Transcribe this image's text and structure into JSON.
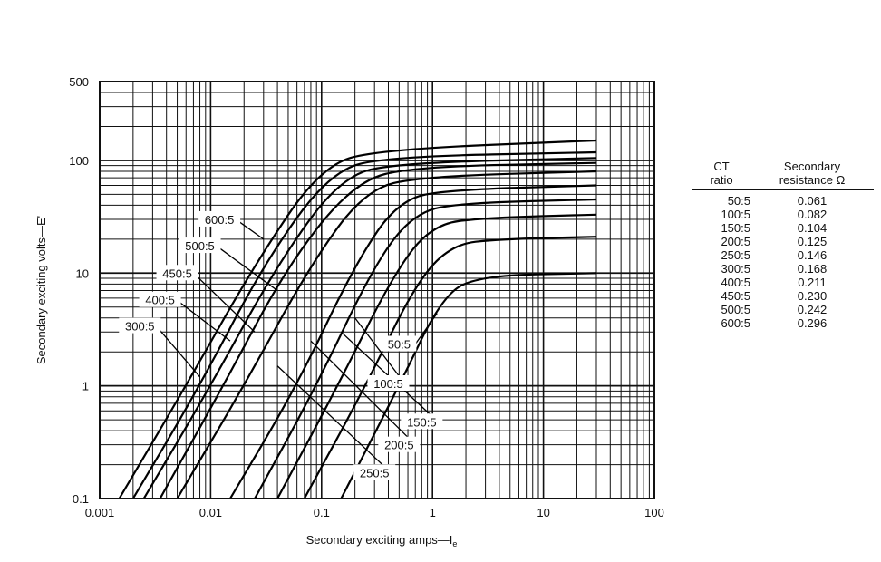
{
  "chart_data": {
    "type": "line",
    "title": "",
    "xlabel": "Secondary exciting amps—I",
    "xlabel_sub": "e",
    "ylabel": "Secondary exciting volts—E'",
    "xscale": "log",
    "yscale": "log",
    "xlim": [
      0.001,
      100
    ],
    "ylim": [
      0.1,
      500
    ],
    "grid": true,
    "x_tick_labels": [
      "0.001",
      "0.01",
      "0.1",
      "1",
      "10",
      "100"
    ],
    "y_tick_labels": [
      "0.1",
      "1",
      "10",
      "100",
      "500"
    ],
    "series": [
      {
        "name": "50:5",
        "points": [
          [
            0.15,
            0.1
          ],
          [
            0.5,
            1
          ],
          [
            1.2,
            6
          ],
          [
            2.5,
            9.5
          ],
          [
            30,
            10
          ]
        ]
      },
      {
        "name": "100:5",
        "points": [
          [
            0.07,
            0.1
          ],
          [
            0.25,
            1
          ],
          [
            0.7,
            8
          ],
          [
            1.5,
            18
          ],
          [
            4,
            20
          ],
          [
            30,
            21
          ]
        ]
      },
      {
        "name": "150:5",
        "points": [
          [
            0.04,
            0.1
          ],
          [
            0.14,
            1
          ],
          [
            0.45,
            10
          ],
          [
            1,
            27
          ],
          [
            3,
            31
          ],
          [
            30,
            33
          ]
        ]
      },
      {
        "name": "200:5",
        "points": [
          [
            0.025,
            0.1
          ],
          [
            0.09,
            1
          ],
          [
            0.3,
            12
          ],
          [
            0.7,
            35
          ],
          [
            2,
            42
          ],
          [
            30,
            45
          ]
        ]
      },
      {
        "name": "250:5",
        "points": [
          [
            0.015,
            0.1
          ],
          [
            0.06,
            1
          ],
          [
            0.2,
            12
          ],
          [
            0.5,
            45
          ],
          [
            1.5,
            55
          ],
          [
            30,
            60
          ]
        ]
      },
      {
        "name": "300:5",
        "points": [
          [
            0.005,
            0.1
          ],
          [
            0.02,
            1
          ],
          [
            0.08,
            12
          ],
          [
            0.25,
            55
          ],
          [
            0.8,
            72
          ],
          [
            30,
            80
          ]
        ]
      },
      {
        "name": "400:5",
        "points": [
          [
            0.0035,
            0.1
          ],
          [
            0.013,
            1
          ],
          [
            0.05,
            12
          ],
          [
            0.2,
            65
          ],
          [
            0.7,
            88
          ],
          [
            30,
            95
          ]
        ]
      },
      {
        "name": "450:5",
        "points": [
          [
            0.0025,
            0.1
          ],
          [
            0.01,
            1
          ],
          [
            0.04,
            12
          ],
          [
            0.15,
            72
          ],
          [
            0.5,
            95
          ],
          [
            30,
            105
          ]
        ]
      },
      {
        "name": "500:5",
        "points": [
          [
            0.002,
            0.1
          ],
          [
            0.008,
            1
          ],
          [
            0.03,
            12
          ],
          [
            0.12,
            80
          ],
          [
            0.4,
            108
          ],
          [
            30,
            118
          ]
        ]
      },
      {
        "name": "600:5",
        "points": [
          [
            0.0015,
            0.1
          ],
          [
            0.006,
            1
          ],
          [
            0.025,
            12
          ],
          [
            0.1,
            90
          ],
          [
            0.35,
            125
          ],
          [
            30,
            150
          ]
        ]
      }
    ],
    "curve_labels": [
      {
        "text": "600:5",
        "anchor": [
          0.012,
          30
        ],
        "target": [
          0.03,
          20
        ]
      },
      {
        "text": "500:5",
        "anchor": [
          0.008,
          17.5
        ],
        "target": [
          0.04,
          7
        ]
      },
      {
        "text": "450:5",
        "anchor": [
          0.005,
          10
        ],
        "target": [
          0.025,
          3
        ]
      },
      {
        "text": "400:5",
        "anchor": [
          0.0035,
          5.8
        ],
        "target": [
          0.015,
          2.5
        ]
      },
      {
        "text": "300:5",
        "anchor": [
          0.0023,
          3.4
        ],
        "target": [
          0.008,
          1.2
        ]
      },
      {
        "text": "50:5",
        "anchor": [
          0.5,
          2.35
        ],
        "target": [
          1.1,
          4.4
        ]
      },
      {
        "text": "100:5",
        "anchor": [
          0.4,
          1.05
        ],
        "target": [
          0.2,
          4
        ]
      },
      {
        "text": "150:5",
        "anchor": [
          0.8,
          0.48
        ],
        "target": [
          0.15,
          3
        ]
      },
      {
        "text": "200:5",
        "anchor": [
          0.5,
          0.3
        ],
        "target": [
          0.08,
          2.5
        ]
      },
      {
        "text": "250:5",
        "anchor": [
          0.3,
          0.17
        ],
        "target": [
          0.04,
          1.5
        ]
      }
    ]
  },
  "table": {
    "header_ratio": [
      "CT",
      "ratio"
    ],
    "header_resistance": [
      "Secondary",
      "resistance Ω"
    ],
    "rows": [
      {
        "ratio": "50:5",
        "resistance": "0.061"
      },
      {
        "ratio": "100:5",
        "resistance": "0.082"
      },
      {
        "ratio": "150:5",
        "resistance": "0.104"
      },
      {
        "ratio": "200:5",
        "resistance": "0.125"
      },
      {
        "ratio": "250:5",
        "resistance": "0.146"
      },
      {
        "ratio": "300:5",
        "resistance": "0.168"
      },
      {
        "ratio": "400:5",
        "resistance": "0.211"
      },
      {
        "ratio": "450:5",
        "resistance": "0.230"
      },
      {
        "ratio": "500:5",
        "resistance": "0.242"
      },
      {
        "ratio": "600:5",
        "resistance": "0.296"
      }
    ]
  }
}
